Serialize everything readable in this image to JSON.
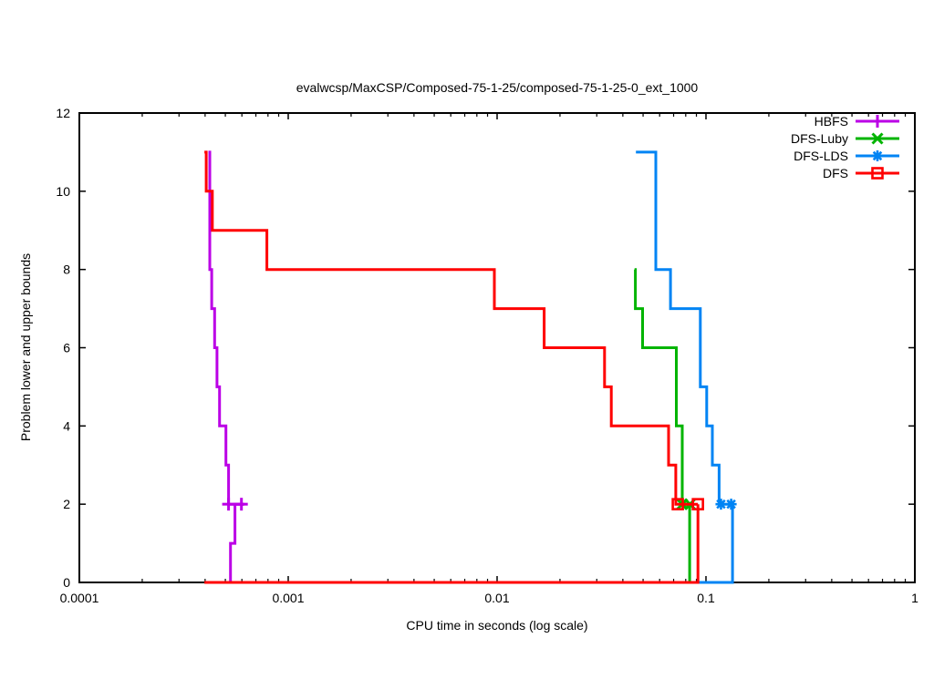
{
  "title": "evalwcsp/MaxCSP/Composed-75-1-25/composed-75-1-25-0_ext_1000",
  "chart_data": {
    "type": "line",
    "subtype": "step-staircase-bounds",
    "title": "evalwcsp/MaxCSP/Composed-75-1-25/composed-75-1-25-0_ext_1000",
    "xlabel": "CPU time in seconds (log scale)",
    "ylabel": "Problem lower and upper bounds",
    "x_scale": "log",
    "xlim": [
      0.0001,
      1
    ],
    "ylim": [
      0,
      12
    ],
    "x_ticks": [
      0.0001,
      0.001,
      0.01,
      0.1,
      1
    ],
    "x_tick_labels": [
      "0.0001",
      "0.001",
      "0.01",
      "0.1",
      "1"
    ],
    "y_ticks": [
      0,
      2,
      4,
      6,
      8,
      10,
      12
    ],
    "grid": false,
    "legend_position": "top-right-inside",
    "axis_color": "#000000",
    "series": [
      {
        "name": "HBFS",
        "color": "#bb00e6",
        "marker": "plus",
        "upper_bound": [
          [
            0.000415,
            11
          ],
          [
            0.000421,
            11
          ],
          [
            0.000421,
            8
          ],
          [
            0.00043,
            8
          ],
          [
            0.00043,
            7
          ],
          [
            0.000444,
            7
          ],
          [
            0.000444,
            6
          ],
          [
            0.000456,
            6
          ],
          [
            0.000456,
            5
          ],
          [
            0.000469,
            5
          ],
          [
            0.000469,
            4
          ],
          [
            0.000503,
            4
          ],
          [
            0.000503,
            3
          ],
          [
            0.000518,
            3
          ],
          [
            0.000518,
            2
          ],
          [
            0.000614,
            2
          ]
        ],
        "lower_bound": [
          [
            0.000415,
            0
          ],
          [
            0.000529,
            0
          ],
          [
            0.000529,
            1
          ],
          [
            0.000556,
            1
          ],
          [
            0.000556,
            2
          ],
          [
            0.000614,
            2
          ]
        ],
        "marker_points": [
          [
            0.000518,
            2
          ],
          [
            0.000597,
            2
          ]
        ]
      },
      {
        "name": "DFS-Luby",
        "color": "#00b400",
        "marker": "cross",
        "upper_bound": [
          [
            0.0455,
            8
          ],
          [
            0.0459,
            8
          ],
          [
            0.0459,
            7
          ],
          [
            0.0497,
            7
          ],
          [
            0.0497,
            6
          ],
          [
            0.0721,
            6
          ],
          [
            0.0721,
            4
          ],
          [
            0.077,
            4
          ],
          [
            0.077,
            2
          ],
          [
            0.0843,
            2
          ]
        ],
        "lower_bound": [
          [
            0.0455,
            0
          ],
          [
            0.0835,
            0
          ],
          [
            0.0835,
            2
          ]
        ],
        "marker_points": [
          [
            0.077,
            2
          ],
          [
            0.0838,
            2
          ]
        ]
      },
      {
        "name": "DFS-LDS",
        "color": "#0084f4",
        "marker": "star",
        "upper_bound": [
          [
            0.0462,
            11
          ],
          [
            0.0575,
            11
          ],
          [
            0.0575,
            8
          ],
          [
            0.0676,
            8
          ],
          [
            0.0676,
            7
          ],
          [
            0.094,
            7
          ],
          [
            0.094,
            5
          ],
          [
            0.1008,
            5
          ],
          [
            0.1008,
            4
          ],
          [
            0.1073,
            4
          ],
          [
            0.1073,
            3
          ],
          [
            0.1156,
            3
          ],
          [
            0.1156,
            2
          ],
          [
            0.1362,
            2
          ]
        ],
        "lower_bound": [
          [
            0.0462,
            0
          ],
          [
            0.134,
            0
          ],
          [
            0.134,
            2
          ]
        ],
        "marker_points": [
          [
            0.118,
            2
          ],
          [
            0.132,
            2
          ]
        ]
      },
      {
        "name": "DFS",
        "color": "#ff0000",
        "marker": "square-open",
        "upper_bound": [
          [
            0.000397,
            11
          ],
          [
            0.000405,
            11
          ],
          [
            0.000405,
            10
          ],
          [
            0.000433,
            10
          ],
          [
            0.000433,
            9
          ],
          [
            0.00079,
            9
          ],
          [
            0.00079,
            8
          ],
          [
            0.0097,
            8
          ],
          [
            0.0097,
            7
          ],
          [
            0.0168,
            7
          ],
          [
            0.0168,
            6
          ],
          [
            0.0327,
            6
          ],
          [
            0.0327,
            5
          ],
          [
            0.0352,
            5
          ],
          [
            0.0352,
            4
          ],
          [
            0.0662,
            4
          ],
          [
            0.0662,
            3
          ],
          [
            0.0717,
            3
          ],
          [
            0.0717,
            2
          ],
          [
            0.0915,
            2
          ]
        ],
        "lower_bound": [
          [
            0.000397,
            0
          ],
          [
            0.0915,
            0
          ],
          [
            0.0915,
            2
          ]
        ],
        "marker_points": [
          [
            0.0733,
            2
          ],
          [
            0.0915,
            2
          ]
        ]
      }
    ]
  }
}
